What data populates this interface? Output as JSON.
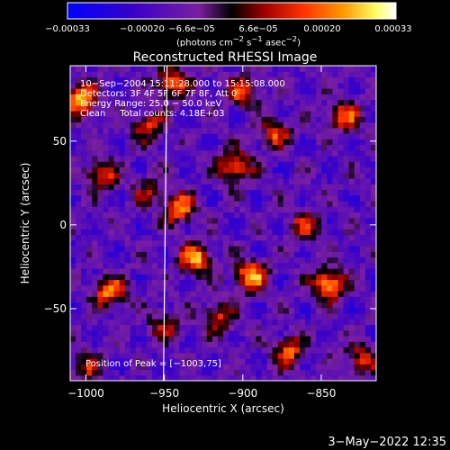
{
  "chart_data": {
    "type": "heatmap",
    "title": "Reconstructed RHESSI Image",
    "xlabel": "Heliocentric X (arcsec)",
    "ylabel": "Heliocentric Y (arcsec)",
    "xlim": [
      -1010,
      -815
    ],
    "ylim": [
      -93,
      95
    ],
    "x_ticks": [
      -1000,
      -950,
      -900,
      -850
    ],
    "x_tick_labels": [
      "−1000",
      "−950",
      "−900",
      "−850"
    ],
    "y_ticks": [
      50,
      0,
      -50
    ],
    "y_tick_labels": [
      "50",
      "0",
      "−50"
    ],
    "colorbar": {
      "label_html": "(photons cm<sup>−2</sup> s<sup>−1</sup> asec<sup>−2</sup>)",
      "min": -0.00033,
      "max": 0.00033,
      "tick_labels": [
        "−0.00033",
        "−0.00020",
        "−6.6e−05",
        "6.6e−05",
        "0.00020",
        "0.00033"
      ],
      "colors": [
        "#0000ff",
        "#3a00c8",
        "#7a1fa0",
        "#000000",
        "#a00000",
        "#ff3300",
        "#ff9900",
        "#ffff66",
        "#ffffff"
      ]
    },
    "annotations": [
      "10−Sep−2004 15:11:28.000 to 15:15:08.000",
      "Detectors: 3F 4F 5F 6F 7F 8F, Att 0",
      "Energy Range: 25.0 − 50.0 keV",
      "Clean     Total counts: 4.18E+03"
    ],
    "peak_label": "Position of Peak = [−1003,75]",
    "peak_position": [
      -1003,
      75
    ],
    "limb_line_x": -950,
    "hotspots": [
      [
        -1003,
        75,
        1.0
      ],
      [
        -990,
        30,
        0.7
      ],
      [
        -985,
        -40,
        0.8
      ],
      [
        -960,
        60,
        0.6
      ],
      [
        -950,
        -60,
        0.5
      ],
      [
        -940,
        10,
        0.8
      ],
      [
        -930,
        -20,
        0.9
      ],
      [
        -915,
        -55,
        0.6
      ],
      [
        -905,
        35,
        0.85
      ],
      [
        -895,
        -30,
        0.9
      ],
      [
        -880,
        55,
        0.6
      ],
      [
        -870,
        -75,
        0.7
      ],
      [
        -860,
        0,
        0.6
      ],
      [
        -845,
        -35,
        0.95
      ],
      [
        -835,
        65,
        0.7
      ],
      [
        -825,
        -80,
        0.6
      ],
      [
        -945,
        85,
        0.8
      ],
      [
        -900,
        80,
        0.7
      ],
      [
        -1000,
        -85,
        0.5
      ],
      [
        -960,
        20,
        0.4
      ]
    ]
  },
  "timestamp": "3−May−2022 12:35"
}
